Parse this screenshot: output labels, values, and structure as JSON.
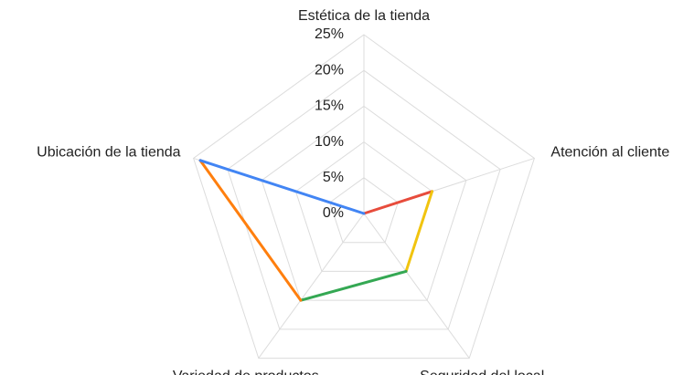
{
  "chart_data": {
    "type": "radar",
    "categories": [
      "Estética de la tienda",
      "Atención al cliente",
      "Seguridad del local",
      "Variedad de productos",
      "Ubicación de la tienda"
    ],
    "values": [
      0,
      10,
      10,
      15,
      24
    ],
    "segment_colors": [
      "#e74c3c",
      "#f1c40f",
      "#34a853",
      "#ff7f0e",
      "#4285f4"
    ],
    "rlim": [
      0,
      25
    ],
    "rticks": [
      {
        "value": 0,
        "label": "0%"
      },
      {
        "value": 5,
        "label": "5%"
      },
      {
        "value": 10,
        "label": "10%"
      },
      {
        "value": 15,
        "label": "15%"
      },
      {
        "value": 20,
        "label": "20%"
      },
      {
        "value": 25,
        "label": "25%"
      }
    ],
    "grid": true
  }
}
